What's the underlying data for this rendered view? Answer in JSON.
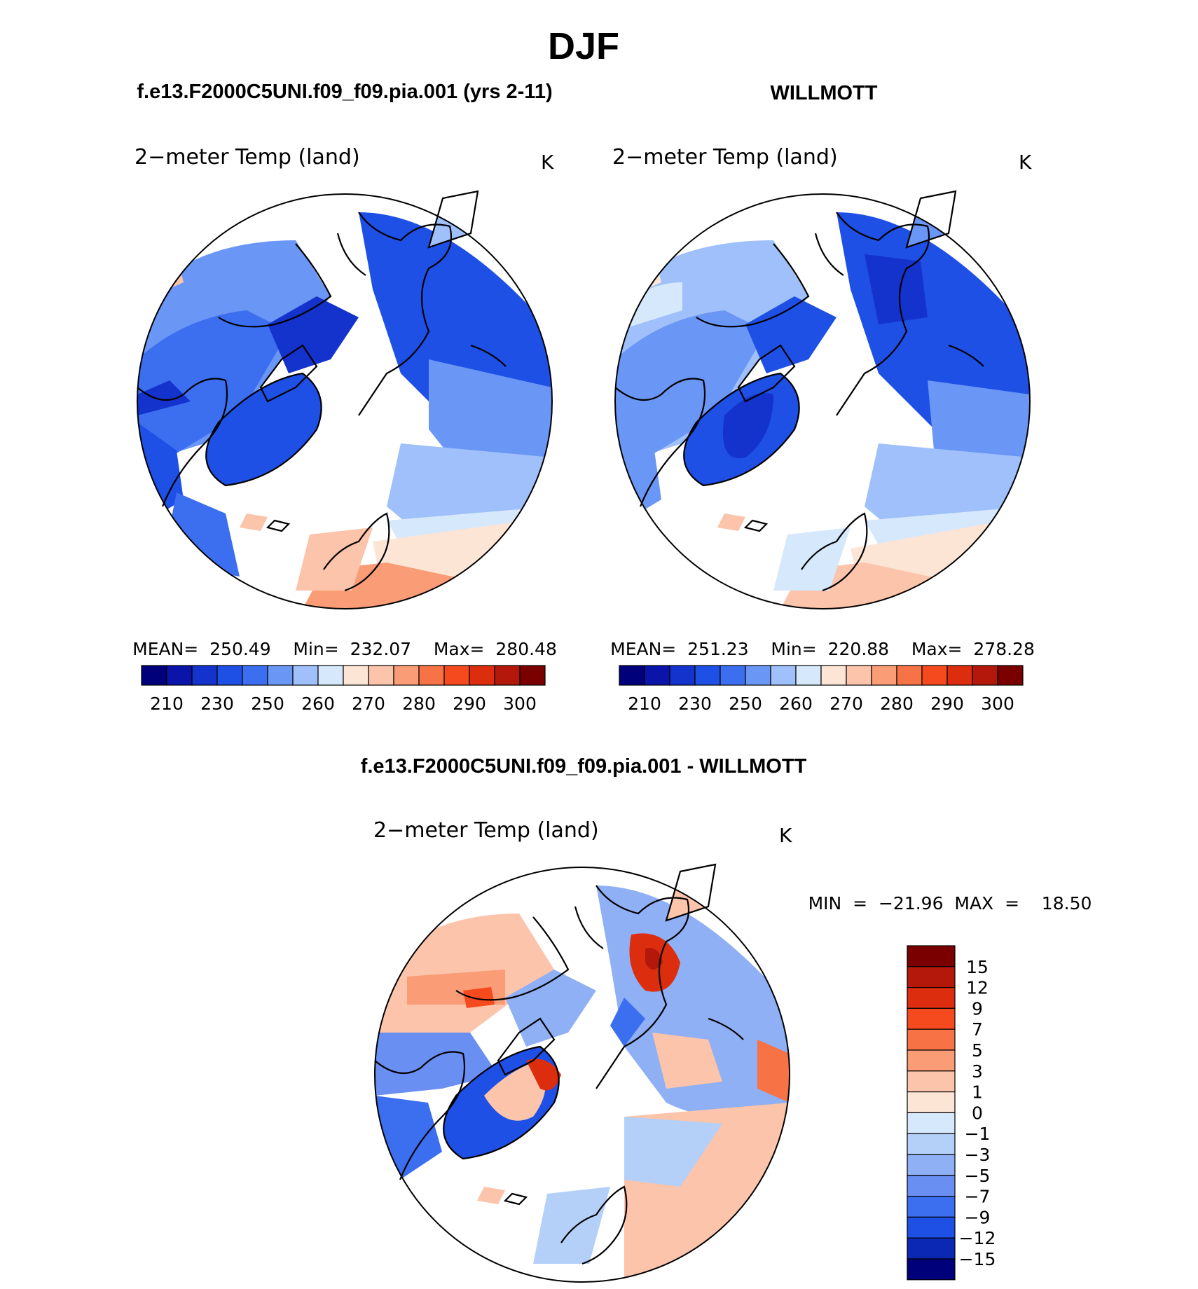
{
  "figure": {
    "season": "DJF",
    "panel_left_title": "f.e13.F2000C5UNI.f09_f09.pia.001 (yrs 2-11)",
    "panel_right_title": "WILLMOTT",
    "diff_title": "f.e13.F2000C5UNI.f09_f09.pia.001 - WILLMOTT"
  },
  "panels": [
    {
      "variable": "2−meter Temp (land)",
      "units": "K",
      "stats": "MEAN=  250.49    Min=  232.07    Max=  280.48",
      "colorbar": {
        "colors": [
          "#00007a",
          "#0a14a8",
          "#1432cc",
          "#1e50e6",
          "#3c6ef0",
          "#6a96f5",
          "#9fc0fa",
          "#d6e8fc",
          "#fde5d6",
          "#fcc4aa",
          "#fa9c76",
          "#f77244",
          "#f44a1e",
          "#dc2e0e",
          "#b4180a",
          "#7a0000"
        ],
        "labels": [
          "210",
          "230",
          "250",
          "260",
          "270",
          "280",
          "290",
          "300"
        ]
      }
    },
    {
      "variable": "2−meter Temp (land)",
      "units": "K",
      "stats": "MEAN=  251.23    Min=  220.88    Max=  278.28",
      "colorbar": {
        "colors": [
          "#00007a",
          "#0a14a8",
          "#1432cc",
          "#1e50e6",
          "#3c6ef0",
          "#6a96f5",
          "#9fc0fa",
          "#d6e8fc",
          "#fde5d6",
          "#fcc4aa",
          "#fa9c76",
          "#f77244",
          "#f44a1e",
          "#dc2e0e",
          "#b4180a",
          "#7a0000"
        ],
        "labels": [
          "210",
          "230",
          "250",
          "260",
          "270",
          "280",
          "290",
          "300"
        ]
      }
    },
    {
      "variable": "2−meter Temp (land)",
      "units": "K",
      "stats": "MIN  =  −21.96  MAX  =    18.50",
      "colorbar": {
        "colors": [
          "#7a0000",
          "#b4180a",
          "#dc2e0e",
          "#f44a1e",
          "#f77244",
          "#fa9c76",
          "#fcc4aa",
          "#fde5d6",
          "#d6e8fc",
          "#b4cff8",
          "#8fb0f5",
          "#6a8ff2",
          "#3c6ef0",
          "#1e50e6",
          "#0a28b4",
          "#00007a"
        ],
        "labels": [
          "15",
          "12",
          "9",
          "7",
          "5",
          "3",
          "1",
          "0",
          "−1",
          "−3",
          "−5",
          "−7",
          "−9",
          "−12",
          "−15"
        ]
      }
    }
  ]
}
